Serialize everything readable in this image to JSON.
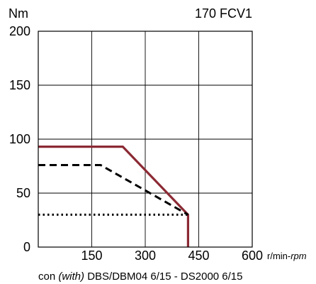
{
  "chart_data": {
    "type": "line",
    "title": "170 FCV1",
    "ylabel": "Nm",
    "xlabel": "r/min-rpm",
    "xlabel_parts": {
      "plain": "r/min-",
      "italic": "rpm"
    },
    "caption": {
      "prefix": "con ",
      "italic": "(with)",
      "rest": " DBS/DBM04 6/15 - DS2000 6/15"
    },
    "xlim": [
      0,
      600
    ],
    "ylim": [
      0,
      200
    ],
    "xticks": [
      150,
      300,
      450,
      600
    ],
    "xtick_labels": [
      "150",
      "300",
      "450",
      "600"
    ],
    "yticks": [
      0,
      50,
      100,
      150,
      200
    ],
    "ytick_labels": [
      "0",
      "50",
      "100",
      "150",
      "200"
    ],
    "grid": true,
    "series": [
      {
        "style": "solid",
        "color": "#8b2a34",
        "points": [
          [
            0,
            93
          ],
          [
            237,
            93
          ],
          [
            420,
            30
          ],
          [
            420,
            0
          ]
        ]
      },
      {
        "style": "dashed",
        "color": "#000000",
        "points": [
          [
            0,
            76
          ],
          [
            175,
            76
          ],
          [
            420,
            30
          ]
        ]
      },
      {
        "style": "dotted",
        "color": "#000000",
        "points": [
          [
            0,
            30
          ],
          [
            420,
            30
          ]
        ]
      }
    ]
  }
}
